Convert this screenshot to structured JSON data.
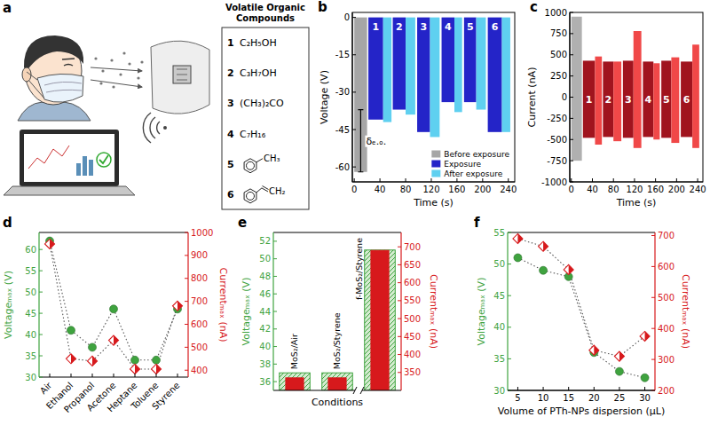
{
  "diagram": {
    "panel": "a",
    "title": "Volatile Organic Compounds",
    "compounds": [
      {
        "number": "1",
        "formula": "C₂H₅OH"
      },
      {
        "number": "2",
        "formula": "C₃H₇OH"
      },
      {
        "number": "3",
        "formula": "(CH₃)₂CO"
      },
      {
        "number": "4",
        "formula": "C₇H₁₆"
      },
      {
        "number": "5",
        "substituent": "CH₃"
      },
      {
        "number": "6",
        "substituent": "CH₂"
      }
    ]
  },
  "chart_data": [
    {
      "panel": "b",
      "type": "bar",
      "x_label": "Time (s)",
      "y_label": "Voltage (V)",
      "xlim": [
        -3,
        250
      ],
      "xticks": [
        0,
        40,
        80,
        120,
        160,
        200,
        240
      ],
      "ylim": [
        -66,
        2
      ],
      "yticks": [
        -60,
        -45,
        -30,
        -15,
        0
      ],
      "legend": "lower right",
      "series": [
        {
          "name": "Before exposure",
          "color": "#a6a6a6",
          "x_start": [
            0
          ],
          "x_end": [
            20
          ],
          "values": [
            -62
          ]
        },
        {
          "name": "Exposure",
          "color": "#2424c8",
          "x_start": [
            22,
            60,
            98,
            136,
            171,
            208
          ],
          "x_end": [
            45,
            80,
            118,
            156,
            190,
            230
          ],
          "values": [
            -41,
            -37,
            -46,
            -34,
            -34,
            -46
          ],
          "annotations": [
            "1",
            "2",
            "3",
            "4",
            "5",
            "6"
          ]
        },
        {
          "name": "After exposure",
          "color": "#5fd0f0",
          "x_start": [
            45,
            80,
            118,
            156,
            190,
            230
          ],
          "x_end": [
            58,
            95,
            133,
            168,
            205,
            243
          ],
          "values": [
            -42,
            -39,
            -48,
            -38,
            -37,
            -46
          ]
        }
      ],
      "annotations": [
        {
          "text": "δₑ.ₒ.",
          "x": 10,
          "y": [
            -37,
            -62
          ]
        }
      ]
    },
    {
      "panel": "c",
      "type": "range",
      "x_label": "Time (s)",
      "y_label": "Current (nA)",
      "xlim": [
        -3,
        250
      ],
      "xticks": [
        0,
        40,
        80,
        120,
        160,
        200,
        240
      ],
      "ylim": [
        -1000,
        1000
      ],
      "yticks": [
        -1000,
        -750,
        -500,
        -250,
        0,
        250,
        500,
        750,
        1000
      ],
      "series": [
        {
          "color": "#b0b0b0",
          "x_start": [
            0
          ],
          "x_end": [
            20
          ],
          "low": [
            -750
          ],
          "high": [
            950
          ]
        },
        {
          "color": "#a0141e",
          "x_start": [
            22,
            60,
            98,
            136,
            171,
            208
          ],
          "x_end": [
            45,
            80,
            118,
            156,
            190,
            230
          ],
          "low": [
            -480,
            -470,
            -480,
            -470,
            -480,
            -470
          ],
          "high": [
            430,
            420,
            430,
            420,
            430,
            420
          ],
          "annotations": [
            "1",
            "2",
            "3",
            "4",
            "5",
            "6"
          ]
        },
        {
          "color": "#f04848",
          "x_start": [
            45,
            80,
            118,
            156,
            190,
            230
          ],
          "x_end": [
            58,
            95,
            133,
            168,
            205,
            243
          ],
          "low": [
            -560,
            -520,
            -600,
            -500,
            -540,
            -600
          ],
          "high": [
            480,
            420,
            780,
            400,
            470,
            620
          ]
        }
      ]
    },
    {
      "panel": "d",
      "type": "line",
      "y_label": "Voltageₘₐₓ (V)",
      "y2_label": "Currentₘₐₓ (nA)",
      "categories": [
        "Air",
        "Ethanol",
        "Propanol",
        "Acetone",
        "Heptane",
        "Toluene",
        "Styrene"
      ],
      "ylim": [
        30,
        64
      ],
      "yticks": [
        30,
        35,
        40,
        45,
        50,
        55,
        60
      ],
      "y2lim": [
        370,
        1000
      ],
      "y2ticks": [
        400,
        500,
        600,
        700,
        800,
        900,
        1000
      ],
      "series": [
        {
          "color": "#3fa33f",
          "marker": "circle",
          "line_style": "dotted",
          "values": [
            62,
            41,
            37,
            46,
            34,
            34,
            46
          ]
        },
        {
          "color": "#d7191c",
          "marker": "half-diamond",
          "line_style": "dotted",
          "axis": "y2",
          "values": [
            950,
            450,
            440,
            530,
            405,
            405,
            680
          ]
        }
      ]
    },
    {
      "panel": "e",
      "type": "bar",
      "x_label": "Conditions",
      "y_label": "Voltageₘₐₓ (V)",
      "y2_label": "Currentₘₐₓ (nA)",
      "categories": [
        "MoS₂/Air",
        "MoS₂/Styrene",
        "f-MoS₂/Styrene"
      ],
      "ylim": [
        35,
        53
      ],
      "yticks": [
        36,
        38,
        40,
        42,
        44,
        46,
        48,
        50,
        52
      ],
      "y2lim": [
        300,
        740
      ],
      "y2ticks": [
        350,
        400,
        450,
        500,
        550,
        600,
        650,
        700
      ],
      "series": [
        {
          "color": "#3fa33f",
          "values": [
            37,
            37,
            51
          ]
        },
        {
          "color": "#d7191c",
          "axis": "y2",
          "values": [
            335,
            335,
            690
          ]
        }
      ]
    },
    {
      "panel": "f",
      "type": "line",
      "x_label": "Volume of PTh-NPs dispersion (μL)",
      "y_label": "Voltageₘₐₓ (V)",
      "y2_label": "Currentₘₐₓ (nA)",
      "x": [
        5,
        10,
        15,
        20,
        25,
        30
      ],
      "xlim": [
        3,
        32
      ],
      "xticks": [
        5,
        10,
        15,
        20,
        25,
        30
      ],
      "ylim": [
        30,
        55
      ],
      "yticks": [
        30,
        35,
        40,
        45,
        50,
        55
      ],
      "y2lim": [
        200,
        710
      ],
      "y2ticks": [
        200,
        300,
        400,
        500,
        600,
        700
      ],
      "series": [
        {
          "color": "#3fa33f",
          "marker": "circle",
          "line_style": "dotted",
          "values": [
            51,
            49,
            48,
            36,
            33,
            32
          ]
        },
        {
          "color": "#d7191c",
          "marker": "half-diamond",
          "line_style": "dotted",
          "axis": "y2",
          "values": [
            690,
            665,
            590,
            330,
            310,
            375
          ]
        }
      ]
    }
  ]
}
